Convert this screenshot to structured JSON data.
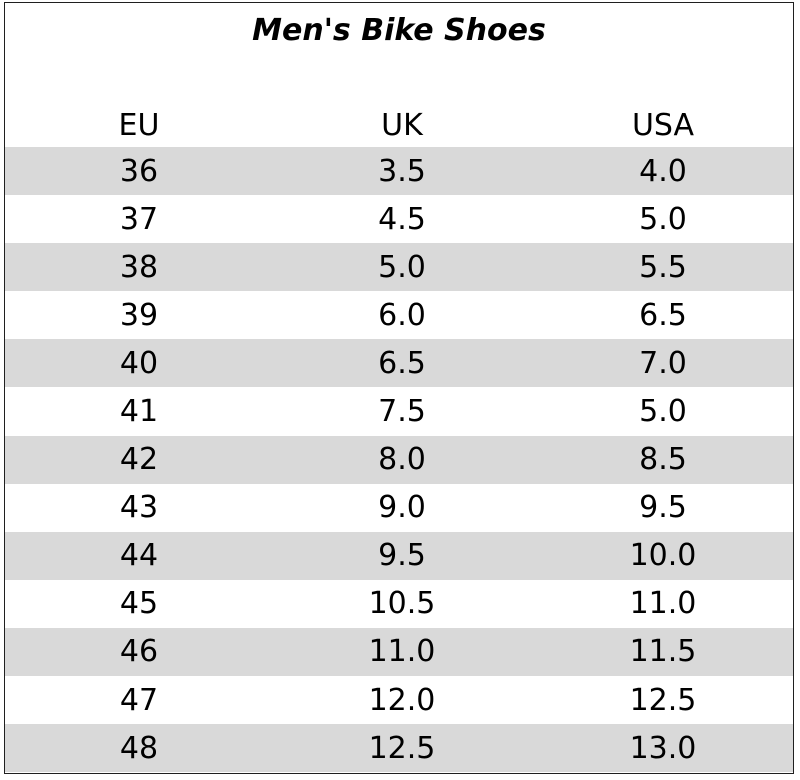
{
  "title": "Men's Bike Shoes",
  "columns": [
    "EU",
    "UK",
    "USA"
  ],
  "rows": [
    [
      "36",
      "3.5",
      "4.0"
    ],
    [
      "37",
      "4.5",
      "5.0"
    ],
    [
      "38",
      "5.0",
      "5.5"
    ],
    [
      "39",
      "6.0",
      "6.5"
    ],
    [
      "40",
      "6.5",
      "7.0"
    ],
    [
      "41",
      "7.5",
      "5.0"
    ],
    [
      "42",
      "8.0",
      "8.5"
    ],
    [
      "43",
      "9.0",
      "9.5"
    ],
    [
      "44",
      "9.5",
      "10.0"
    ],
    [
      "45",
      "10.5",
      "11.0"
    ],
    [
      "46",
      "11.0",
      "11.5"
    ],
    [
      "47",
      "12.0",
      "12.5"
    ],
    [
      "48",
      "12.5",
      "13.0"
    ]
  ],
  "colors": {
    "shaded_row": "#d9d9d9",
    "border": "#1f1f1f"
  }
}
